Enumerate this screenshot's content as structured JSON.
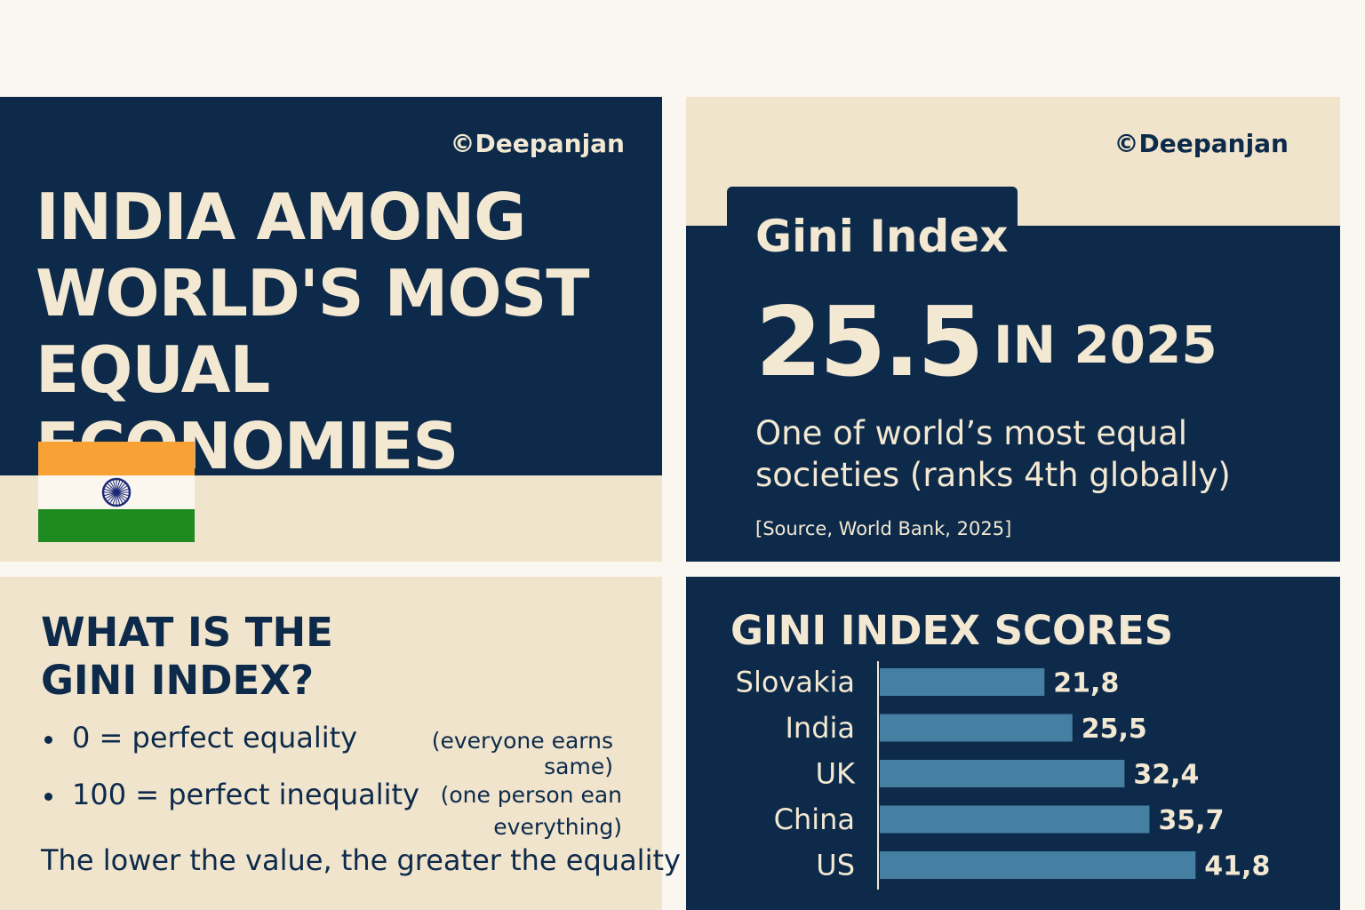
{
  "credit": "©Deepanjan",
  "headline": {
    "lines": [
      "INDIA AMONG",
      "WORLD'S MOST",
      "EQUAL ECONOMIES"
    ]
  },
  "flag": {
    "colors": {
      "saffron": "#f8a236",
      "white": "#fbf7ef",
      "green": "#1f8a1f",
      "chakra": "#1e2a78"
    }
  },
  "gini_panel": {
    "title": "Gini Index",
    "value": "25.5",
    "year_text": "IN 2025",
    "description": "One of world’s most equal societies (ranks 4th globally)",
    "source": "[Source, World Bank, 2025]"
  },
  "what_is": {
    "title": "WHAT IS THE\nGINI INDEX?",
    "bullets": [
      {
        "text": "0 = perfect equality",
        "note": "(everyone earns same)"
      },
      {
        "text": "100 = perfect inequality",
        "note": "(one person ean everything)"
      }
    ],
    "footer": "The lower the value, the greater the equality"
  },
  "colors": {
    "navy": "#0d2a4a",
    "cream": "#f0e4cc",
    "bar": "#4580a3"
  },
  "chart_data": {
    "type": "bar",
    "orientation": "horizontal",
    "title": "GINI INDEX SCORES",
    "categories": [
      "Slovakia",
      "India",
      "UK",
      "China",
      "US"
    ],
    "values": [
      21.8,
      25.5,
      32.4,
      35.7,
      41.8
    ],
    "value_labels": [
      "21,8",
      "25,5",
      "32,4",
      "35,7",
      "41,8"
    ],
    "xlim": [
      0,
      100
    ],
    "grid": false,
    "legend": "none"
  }
}
